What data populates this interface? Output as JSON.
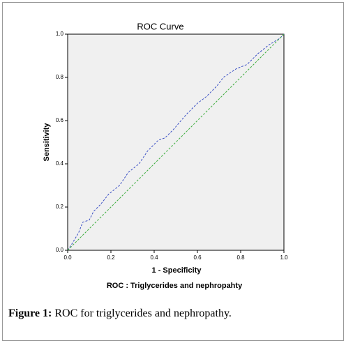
{
  "chart_data": {
    "type": "line",
    "title": "ROC Curve",
    "xlabel": "1 - Specificity",
    "ylabel": "Sensitivity",
    "subtitle": "ROC : Triglycerides and nephropahty",
    "xlim": [
      0,
      1
    ],
    "ylim": [
      0,
      1
    ],
    "xticks": [
      {
        "value": 0,
        "label": "0.0"
      },
      0.2,
      0.4,
      0.6,
      0.8,
      {
        "value": 1,
        "label": "1.0"
      }
    ],
    "yticks": [
      {
        "value": 0,
        "label": "0.0"
      },
      0.2,
      0.4,
      0.6,
      0.8,
      {
        "value": 1,
        "label": "1.0"
      }
    ],
    "series": [
      {
        "color": "#3a4fc4",
        "x": [
          0,
          0.02,
          0.05,
          0.07,
          0.1,
          0.12,
          0.15,
          0.19,
          0.24,
          0.28,
          0.33,
          0.37,
          0.42,
          0.45,
          0.49,
          0.55,
          0.6,
          0.64,
          0.69,
          0.72,
          0.78,
          0.83,
          0.88,
          0.93,
          0.98,
          1
        ],
        "values": [
          0,
          0.03,
          0.08,
          0.13,
          0.14,
          0.18,
          0.21,
          0.26,
          0.3,
          0.36,
          0.4,
          0.46,
          0.51,
          0.52,
          0.56,
          0.63,
          0.68,
          0.71,
          0.76,
          0.8,
          0.84,
          0.86,
          0.91,
          0.95,
          0.98,
          1
        ]
      },
      {
        "color": "#3fae3f",
        "x": [
          0,
          1
        ],
        "values": [
          0,
          1
        ]
      }
    ]
  },
  "caption": {
    "label": "Figure 1:",
    "text": "ROC for triglycerides and nephropathy."
  }
}
